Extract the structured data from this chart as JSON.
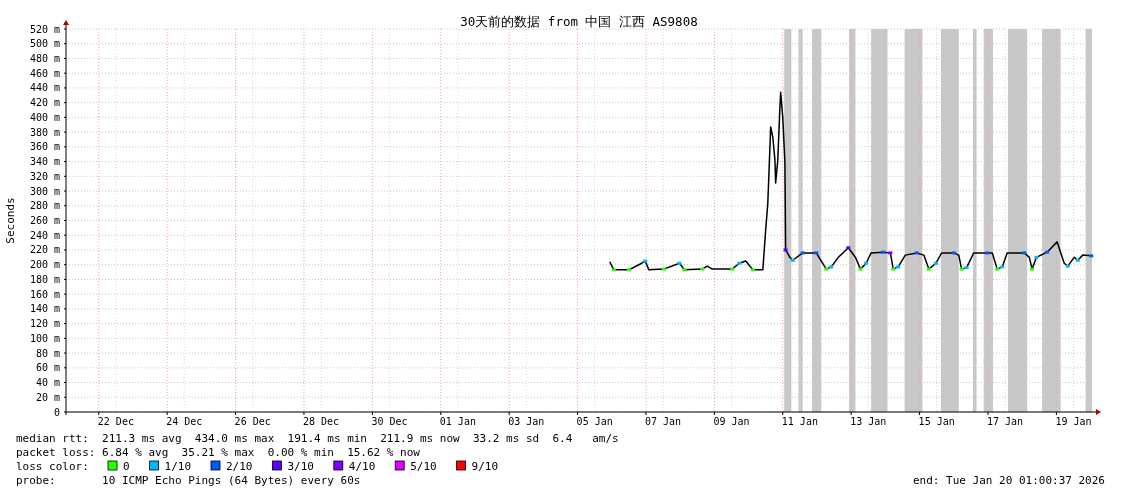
{
  "chart_data": {
    "type": "line",
    "title": "30天前的数据 from 中国 江西 AS9808",
    "ylabel": "Seconds",
    "legend_title": "loss color:",
    "legend": "bottom",
    "grid": true,
    "line_style": "solid",
    "xlim": [
      "2025-12-21T01:00",
      "2026-01-20T01:00"
    ],
    "ylim": [
      0,
      520
    ],
    "yticks": [
      0,
      {
        "value": 20,
        "label": "20 m"
      },
      {
        "value": 40,
        "label": "40 m"
      },
      {
        "value": 60,
        "label": "60 m"
      },
      {
        "value": 80,
        "label": "80 m"
      },
      {
        "value": 100,
        "label": "100 m"
      },
      {
        "value": 120,
        "label": "120 m"
      },
      {
        "value": 140,
        "label": "140 m"
      },
      {
        "value": 160,
        "label": "160 m"
      },
      {
        "value": 180,
        "label": "180 m"
      },
      {
        "value": 200,
        "label": "200 m"
      },
      {
        "value": 220,
        "label": "220 m"
      },
      {
        "value": 240,
        "label": "240 m"
      },
      {
        "value": 260,
        "label": "260 m"
      },
      {
        "value": 280,
        "label": "280 m"
      },
      {
        "value": 300,
        "label": "300 m"
      },
      {
        "value": 320,
        "label": "320 m"
      },
      {
        "value": 340,
        "label": "340 m"
      },
      {
        "value": 360,
        "label": "360 m"
      },
      {
        "value": 380,
        "label": "380 m"
      },
      {
        "value": 400,
        "label": "400 m"
      },
      {
        "value": 420,
        "label": "420 m"
      },
      {
        "value": 440,
        "label": "440 m"
      },
      {
        "value": 460,
        "label": "460 m"
      },
      {
        "value": 480,
        "label": "480 m"
      },
      {
        "value": 500,
        "label": "500 m"
      },
      {
        "value": 520,
        "label": "520 m"
      }
    ],
    "xticks": [
      {
        "value": "2025-12-22",
        "label": null
      },
      {
        "value": "2025-12-22T12:00",
        "label": "22 Dec"
      },
      {
        "value": "2025-12-24",
        "label": null
      },
      {
        "value": "2025-12-24T12:00",
        "label": "24 Dec"
      },
      {
        "value": "2025-12-26",
        "label": null
      },
      {
        "value": "2025-12-26T12:00",
        "label": "26 Dec"
      },
      {
        "value": "2025-12-28",
        "label": null
      },
      {
        "value": "2025-12-28T12:00",
        "label": "28 Dec"
      },
      {
        "value": "2025-12-30",
        "label": null
      },
      {
        "value": "2025-12-30T12:00",
        "label": "30 Dec"
      },
      {
        "value": "2026-01-01",
        "label": null
      },
      {
        "value": "2026-01-01T12:00",
        "label": "01 Jan"
      },
      {
        "value": "2026-01-03",
        "label": null
      },
      {
        "value": "2026-01-03T12:00",
        "label": "03 Jan"
      },
      {
        "value": "2026-01-05",
        "label": null
      },
      {
        "value": "2026-01-05T12:00",
        "label": "05 Jan"
      },
      {
        "value": "2026-01-07",
        "label": null
      },
      {
        "value": "2026-01-07T12:00",
        "label": "07 Jan"
      },
      {
        "value": "2026-01-09",
        "label": null
      },
      {
        "value": "2026-01-09T12:00",
        "label": "09 Jan"
      },
      {
        "value": "2026-01-11",
        "label": null
      },
      {
        "value": "2026-01-11T12:00",
        "label": "11 Jan"
      },
      {
        "value": "2026-01-13",
        "label": null
      },
      {
        "value": "2026-01-13T12:00",
        "label": "13 Jan"
      },
      {
        "value": "2026-01-15",
        "label": null
      },
      {
        "value": "2026-01-15T12:00",
        "label": "15 Jan"
      },
      {
        "value": "2026-01-17",
        "label": null
      },
      {
        "value": "2026-01-17T12:00",
        "label": "17 Jan"
      },
      {
        "value": "2026-01-19",
        "label": null
      },
      {
        "value": "2026-01-19T12:00",
        "label": "19 Jan"
      }
    ],
    "bands": [
      {
        "axis": "x",
        "from": "2026-01-11T01:00",
        "to": "2026-01-11T06:00",
        "color": "#c8c8c8"
      },
      {
        "axis": "x",
        "from": "2026-01-11T11:00",
        "to": "2026-01-11T14:00",
        "color": "#c8c8c8"
      },
      {
        "axis": "x",
        "from": "2026-01-11T20:30",
        "to": "2026-01-12T03:00",
        "color": "#c8c8c8"
      },
      {
        "axis": "x",
        "from": "2026-01-12T22:30",
        "to": "2026-01-13T03:00",
        "color": "#c8c8c8"
      },
      {
        "axis": "x",
        "from": "2026-01-13T14:00",
        "to": "2026-01-14T01:30",
        "color": "#c8c8c8"
      },
      {
        "axis": "x",
        "from": "2026-01-14T13:30",
        "to": "2026-01-15T02:00",
        "color": "#c8c8c8"
      },
      {
        "axis": "x",
        "from": "2026-01-15T15:00",
        "to": "2026-01-16T03:30",
        "color": "#c8c8c8"
      },
      {
        "axis": "x",
        "from": "2026-01-16T13:30",
        "to": "2026-01-16T16:00",
        "color": "#c8c8c8"
      },
      {
        "axis": "x",
        "from": "2026-01-16T21:00",
        "to": "2026-01-17T03:30",
        "color": "#c8c8c8"
      },
      {
        "axis": "x",
        "from": "2026-01-17T14:00",
        "to": "2026-01-18T03:30",
        "color": "#c8c8c8"
      },
      {
        "axis": "x",
        "from": "2026-01-18T14:00",
        "to": "2026-01-19T03:00",
        "color": "#c8c8c8"
      },
      {
        "axis": "x",
        "from": "2026-01-19T20:30",
        "to": "2026-01-20T01:00",
        "color": "#c8c8c8"
      }
    ],
    "annotations": [
      "median rtt:  211.3 ms avg  434.0 ms max  191.4 ms min  211.9 ms now  33.2 ms sd  6.4   am/s",
      "packet loss: 6.84 % avg  35.21 % max  0.00 % min  15.62 % now",
      "probe:       10 ICMP Echo Pings (64 Bytes) every 60s",
      "end: Tue Jan 20 01:00:37 2026"
    ],
    "series": [
      {
        "type": "line",
        "color": "#000000",
        "x": [
          "2026-01-05T22:30",
          "2026-01-06T01:30",
          "2026-01-06T12:00",
          "2026-01-06T21:00",
          "2026-01-06T23:30",
          "2026-01-07T02:00",
          "2026-01-07T12:30",
          "2026-01-07T23:30",
          "2026-01-08T03:00",
          "2026-01-08T15:30",
          "2026-01-08T19:00",
          "2026-01-08T22:30",
          "2026-01-09T12:30",
          "2026-01-09T17:30",
          "2026-01-09T22:00",
          "2026-01-10T03:00",
          "2026-01-10T08:30",
          "2026-01-10T10:00",
          "2026-01-10T12:00",
          "2026-01-10T13:30",
          "2026-01-10T15:00",
          "2026-01-10T15:30",
          "2026-01-10T17:00",
          "2026-01-10T18:30",
          "2026-01-10T19:00",
          "2026-01-10T20:30",
          "2026-01-10T22:00",
          "2026-01-10T22:30",
          "2026-01-11T00:00",
          "2026-01-11T01:30",
          "2026-01-11T02:00",
          "2026-01-11T05:00",
          "2026-01-11T07:00",
          "2026-01-11T14:00",
          "2026-01-11T23:30",
          "2026-01-12T06:30",
          "2026-01-12T10:00",
          "2026-01-12T15:00",
          "2026-01-12T22:00",
          "2026-01-13T03:00",
          "2026-01-13T06:30",
          "2026-01-13T10:30",
          "2026-01-13T14:00",
          "2026-01-13T22:30",
          "2026-01-14T03:30",
          "2026-01-14T05:30",
          "2026-01-14T09:00",
          "2026-01-14T14:00",
          "2026-01-14T22:00",
          "2026-01-15T03:00",
          "2026-01-15T06:30",
          "2026-01-15T11:30",
          "2026-01-15T15:30",
          "2026-01-16T00:00",
          "2026-01-16T03:30",
          "2026-01-16T05:30",
          "2026-01-16T09:00",
          "2026-01-16T14:00",
          "2026-01-16T23:30",
          "2026-01-17T03:00",
          "2026-01-17T06:30",
          "2026-01-17T10:00",
          "2026-01-17T13:30",
          "2026-01-18T01:30",
          "2026-01-18T05:00",
          "2026-01-18T07:00",
          "2026-01-18T10:00",
          "2026-01-18T17:30",
          "2026-01-19T00:30",
          "2026-01-19T05:30",
          "2026-01-19T08:00",
          "2026-01-19T12:30",
          "2026-01-19T15:00",
          "2026-01-19T18:30",
          "2026-01-20T00:30"
        ],
        "values": [
          204,
          193,
          193,
          202,
          205,
          193,
          194,
          202,
          193,
          194,
          198,
          194,
          194,
          202,
          205,
          193,
          193,
          193,
          247,
          284,
          360,
          387,
          373,
          342,
          311,
          342,
          414,
          434,
          400,
          338,
          220,
          210,
          206,
          216,
          216,
          194,
          197,
          210,
          223,
          210,
          194,
          202,
          216,
          217,
          216,
          194,
          197,
          213,
          216,
          213,
          194,
          202,
          216,
          216,
          213,
          194,
          196,
          216,
          216,
          216,
          194,
          197,
          216,
          216,
          210,
          194,
          210,
          217,
          231,
          202,
          198,
          210,
          206,
          213,
          212
        ]
      },
      {
        "type": "scatter",
        "name": "0",
        "color": "#26ff00",
        "marker": "square",
        "x": [
          "2026-01-06T01:30",
          "2026-01-06T12:00",
          "2026-01-07T12:30",
          "2026-01-08T03:00",
          "2026-01-08T15:30",
          "2026-01-09T12:30",
          "2026-01-10T03:00",
          "2026-01-12T06:30",
          "2026-01-13T06:30",
          "2026-01-14T05:30",
          "2026-01-15T06:30",
          "2026-01-16T05:30",
          "2026-01-17T06:30",
          "2026-01-18T07:00"
        ],
        "values": [
          193,
          193,
          194,
          193,
          194,
          194,
          193,
          194,
          194,
          194,
          194,
          194,
          194,
          194
        ]
      },
      {
        "type": "scatter",
        "name": "1/10",
        "color": "#00b8ff",
        "marker": "square",
        "x": [
          "2026-01-06T23:30",
          "2026-01-07T23:30",
          "2026-01-09T17:30",
          "2026-01-11T07:00",
          "2026-01-12T10:00",
          "2026-01-13T10:30",
          "2026-01-14T09:00",
          "2026-01-15T11:30",
          "2026-01-16T09:00",
          "2026-01-17T10:00",
          "2026-01-18T10:00",
          "2026-01-19T08:00",
          "2026-01-19T15:00"
        ],
        "values": [
          205,
          202,
          202,
          206,
          197,
          202,
          197,
          202,
          196,
          197,
          210,
          198,
          206
        ]
      },
      {
        "type": "scatter",
        "name": "2/10",
        "color": "#0059ff",
        "marker": "square",
        "x": [
          "2026-01-11T14:00",
          "2026-01-11T23:30",
          "2026-01-13T22:30",
          "2026-01-14T22:00",
          "2026-01-16T00:00",
          "2026-01-16T23:30",
          "2026-01-18T01:30",
          "2026-01-18T17:30",
          "2026-01-20T00:30"
        ],
        "values": [
          216,
          216,
          217,
          216,
          216,
          216,
          216,
          217,
          212
        ]
      },
      {
        "type": "scatter",
        "name": "3/10",
        "color": "#5e00ff",
        "marker": "square",
        "x": [
          "2026-01-11T02:00",
          "2026-01-12T22:00"
        ],
        "values": [
          220,
          223
        ]
      },
      {
        "type": "scatter",
        "name": "4/10",
        "color": "#7e00ff",
        "marker": "square",
        "x": [
          "2026-01-14T03:30"
        ],
        "values": [
          216
        ]
      },
      {
        "type": "scatter",
        "name": "5/10",
        "color": "#dd00ff",
        "marker": "square",
        "values": [
          null
        ]
      },
      {
        "type": "scatter",
        "name": "9/10",
        "color": "#ff0000",
        "marker": "square",
        "values": [
          null
        ]
      }
    ]
  }
}
